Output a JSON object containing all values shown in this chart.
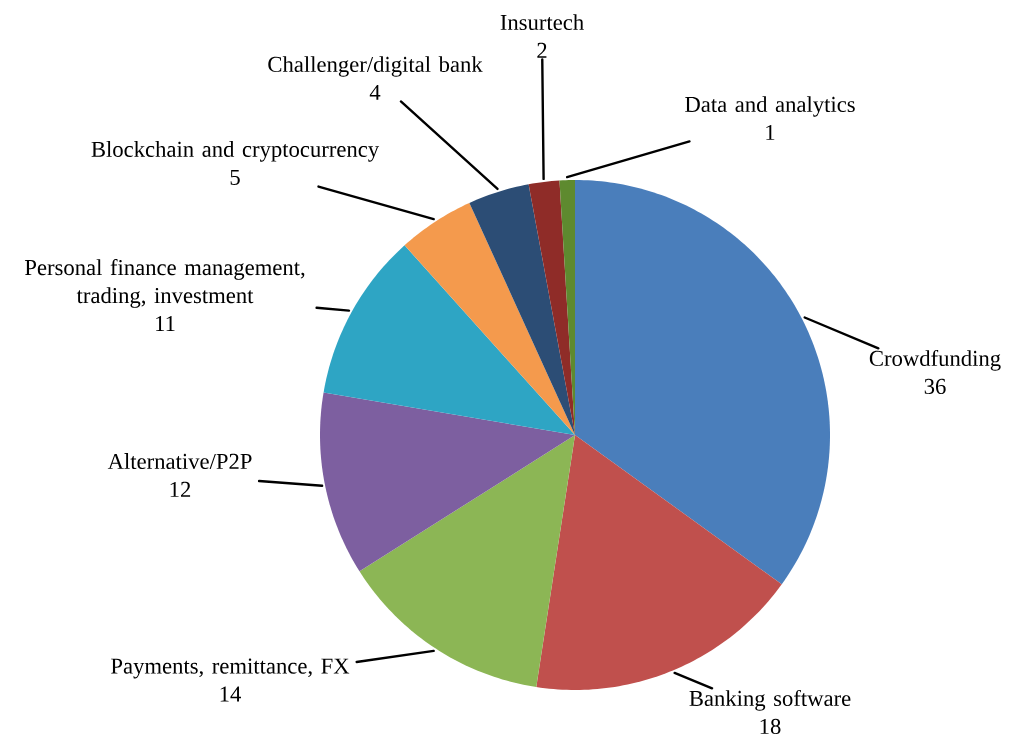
{
  "chart_data": {
    "type": "pie",
    "categories": [
      "Crowdfunding",
      "Banking software",
      "Payments, remittance, FX",
      "Alternative/P2P",
      "Personal finance management, trading, investment",
      "Blockchain and cryptocurrency",
      "Challenger/digital bank",
      "Insurtech",
      "Data and analytics"
    ],
    "values": [
      36,
      18,
      14,
      12,
      11,
      5,
      4,
      2,
      1
    ],
    "colors": [
      "#4a7ebb",
      "#c0504d",
      "#8cb655",
      "#7d5fa0",
      "#2ea5c4",
      "#f49a4d",
      "#2c4d75",
      "#8f2c28",
      "#5e8a2f"
    ],
    "data_labels": true
  }
}
